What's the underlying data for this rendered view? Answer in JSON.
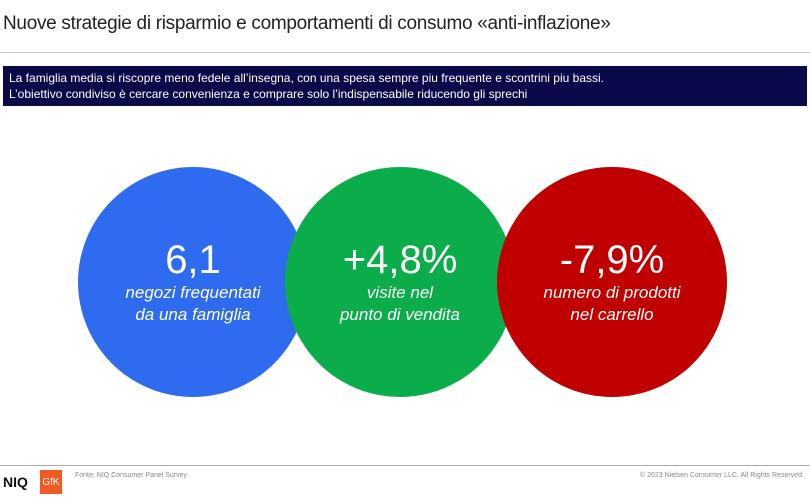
{
  "header": {
    "title": "Nuove strategie di risparmio e comportamenti di consumo «anti-inflazione»"
  },
  "banner": {
    "line1": "La famiglia media si riscopre meno fedele all’insegna,  con una spesa sempre piu frequente  e scontrini piu bassi.",
    "line2": "L’obiettivo condiviso è cercare convenienza  e comprare solo l’indispensabile  riducendo gli sprechi"
  },
  "circles": [
    {
      "value": "6,1",
      "line1": "negozi frequentati",
      "line2": "da una famiglia",
      "color": "#2f6bef"
    },
    {
      "value": "+4,8%",
      "line1": "visite nel",
      "line2": "punto di vendita",
      "color": "#0bad4a"
    },
    {
      "value": "-7,9%",
      "line1": "numero di prodotti",
      "line2": "nel carrello",
      "color": "#c00000"
    }
  ],
  "footer": {
    "logo_niq": "NIQ",
    "logo_gfk": "GfK",
    "source": "Fonte: NIQ  Consumer Panel Survey",
    "copyright": "© 2023  Nielsen Consumer LLC. All Rights Reserved."
  }
}
